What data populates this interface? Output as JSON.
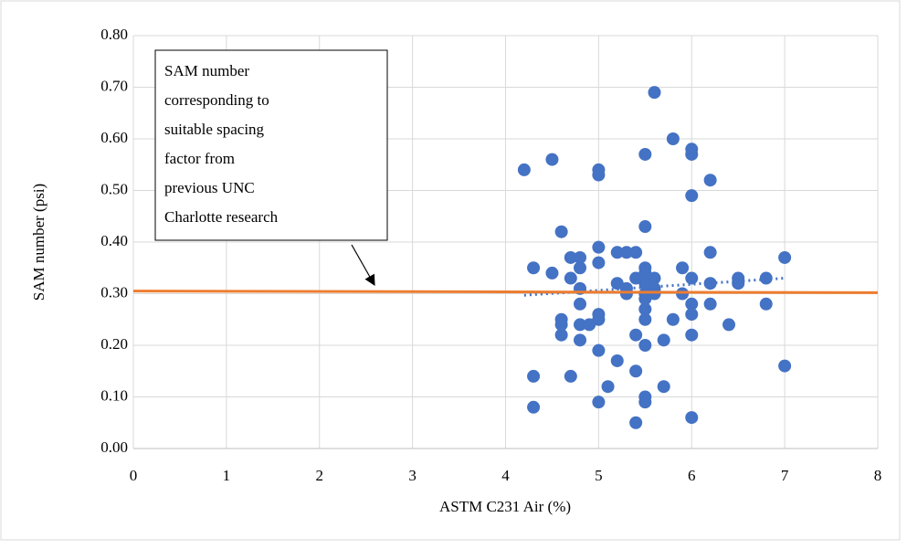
{
  "chart_data": {
    "type": "scatter",
    "x_label": "ASTM C231 Air (%)",
    "y_label": "SAM number (psi)",
    "xlim": [
      0,
      8
    ],
    "xticks": [
      0,
      1,
      2,
      3,
      4,
      5,
      6,
      7,
      8
    ],
    "ylim": [
      0,
      0.8
    ],
    "yticks": [
      {
        "value": 0,
        "label": "0.00"
      },
      {
        "value": 0.1,
        "label": "0.10"
      },
      {
        "value": 0.2,
        "label": "0.20"
      },
      {
        "value": 0.3,
        "label": "0.30"
      },
      {
        "value": 0.4,
        "label": "0.40"
      },
      {
        "value": 0.5,
        "label": "0.50"
      },
      {
        "value": 0.6,
        "label": "0.60"
      },
      {
        "value": 0.7,
        "label": "0.70"
      },
      {
        "value": 0.8,
        "label": "0.80"
      }
    ],
    "grid": true,
    "color": "#4472c4",
    "x": [
      4.2,
      4.5,
      5.0,
      5.0,
      5.6,
      5.8,
      6.0,
      6.0,
      5.5,
      6.2,
      6.0,
      4.6,
      5.5,
      5.0,
      4.7,
      4.8,
      5.2,
      5.3,
      5.4,
      6.2,
      7.0,
      4.3,
      4.5,
      4.8,
      4.7,
      5.0,
      5.5,
      5.9,
      5.4,
      5.5,
      5.6,
      6.0,
      6.5,
      6.8,
      4.8,
      5.2,
      5.3,
      5.3,
      5.5,
      5.5,
      5.6,
      5.6,
      5.5,
      6.2,
      6.5,
      5.9,
      6.0,
      6.2,
      6.8,
      4.8,
      5.5,
      5.0,
      6.0,
      4.6,
      5.0,
      5.5,
      5.8,
      4.6,
      4.8,
      4.9,
      6.4,
      4.6,
      5.4,
      6.0,
      4.8,
      5.7,
      5.5,
      5.0,
      5.2,
      7.0,
      5.4,
      4.3,
      4.7,
      5.1,
      5.7,
      5.5,
      5.5,
      5.0,
      4.3,
      6.0,
      5.4
    ],
    "values": [
      0.54,
      0.56,
      0.54,
      0.53,
      0.69,
      0.6,
      0.58,
      0.57,
      0.57,
      0.52,
      0.49,
      0.42,
      0.43,
      0.39,
      0.37,
      0.37,
      0.38,
      0.38,
      0.38,
      0.38,
      0.37,
      0.35,
      0.34,
      0.35,
      0.33,
      0.36,
      0.35,
      0.35,
      0.33,
      0.34,
      0.33,
      0.33,
      0.33,
      0.33,
      0.31,
      0.32,
      0.31,
      0.3,
      0.32,
      0.3,
      0.31,
      0.3,
      0.29,
      0.32,
      0.32,
      0.3,
      0.28,
      0.28,
      0.28,
      0.28,
      0.27,
      0.26,
      0.26,
      0.25,
      0.25,
      0.25,
      0.25,
      0.24,
      0.24,
      0.24,
      0.24,
      0.22,
      0.22,
      0.22,
      0.21,
      0.21,
      0.2,
      0.19,
      0.17,
      0.16,
      0.15,
      0.14,
      0.14,
      0.12,
      0.12,
      0.1,
      0.09,
      0.09,
      0.08,
      0.06,
      0.05
    ],
    "trendline": {
      "x": [
        4.2,
        7.0
      ],
      "values": [
        0.297,
        0.33
      ],
      "color": "#4472c4"
    },
    "reference_line": {
      "x": [
        0,
        8
      ],
      "values": [
        0.305,
        0.302
      ],
      "color": "#ed7d31"
    },
    "annotation": [
      "SAM number",
      "corresponding to",
      "suitable spacing",
      "factor from",
      "previous UNC",
      "Charlotte research"
    ]
  }
}
